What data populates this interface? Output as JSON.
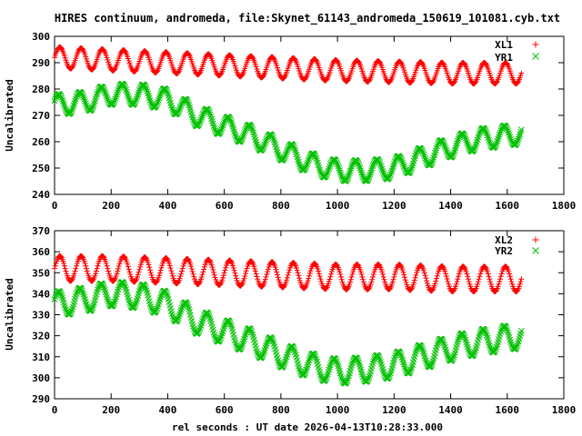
{
  "title": "HIRES continuum, andromeda, file:Skynet_61143_andromeda_150619_101081.cyb.txt",
  "xlabel": "rel seconds : UT date 2026-04-13T10:28:33.000",
  "chart_data": [
    {
      "type": "scatter",
      "ylabel": "Uncalibrated",
      "xlim": [
        0,
        1800
      ],
      "ylim": [
        240,
        300
      ],
      "xticks": [
        0,
        200,
        400,
        600,
        800,
        1000,
        1200,
        1400,
        1600,
        1800
      ],
      "yticks": [
        240,
        250,
        260,
        270,
        280,
        290,
        300
      ],
      "xtick_labels": [
        "0",
        "200",
        "400",
        "600",
        "800",
        "1000",
        "1200",
        "1400",
        "1600",
        "1800"
      ],
      "ytick_labels": [
        "240",
        "250",
        "260",
        "270",
        "280",
        "290",
        "300"
      ],
      "legend": "top-right",
      "oscillation_period_s": 75,
      "series": [
        {
          "name": "XL1",
          "marker": "+",
          "color": "#ff0000",
          "amplitude": 4,
          "baseline": {
            "x": [
              0,
              200,
              400,
              600,
              800,
              1000,
              1200,
              1400,
              1650
            ],
            "y": [
              292,
              291,
              290,
              289,
              288,
              287,
              286.5,
              286,
              286
            ]
          }
        },
        {
          "name": "YR1",
          "marker": "x",
          "color": "#00c000",
          "amplitude": 4,
          "baseline": {
            "x": [
              0,
              100,
              200,
              300,
              400,
              500,
              600,
              700,
              800,
              900,
              1000,
              1100,
              1200,
              1300,
              1400,
              1500,
              1650
            ],
            "y": [
              274,
              275,
              278,
              278,
              276,
              270,
              266,
              262,
              257,
              252,
              249,
              249,
              250,
              254,
              258,
              261,
              263
            ]
          }
        }
      ]
    },
    {
      "type": "scatter",
      "ylabel": "Uncalibrated",
      "xlim": [
        0,
        1800
      ],
      "ylim": [
        290,
        370
      ],
      "xticks": [
        0,
        200,
        400,
        600,
        800,
        1000,
        1200,
        1400,
        1600,
        1800
      ],
      "yticks": [
        290,
        300,
        310,
        320,
        330,
        340,
        350,
        360,
        370
      ],
      "xtick_labels": [
        "0",
        "200",
        "400",
        "600",
        "800",
        "1000",
        "1200",
        "1400",
        "1600",
        "1800"
      ],
      "ytick_labels": [
        "290",
        "300",
        "310",
        "320",
        "330",
        "340",
        "350",
        "360",
        "370"
      ],
      "legend": "top-right",
      "oscillation_period_s": 75,
      "series": [
        {
          "name": "XL2",
          "marker": "+",
          "color": "#ff0000",
          "amplitude": 6,
          "baseline": {
            "x": [
              0,
              200,
              400,
              600,
              800,
              1000,
              1200,
              1400,
              1650
            ],
            "y": [
              352,
              352,
              351,
              350,
              349,
              348,
              348,
              347,
              347
            ]
          }
        },
        {
          "name": "YR2",
          "marker": "x",
          "color": "#00c000",
          "amplitude": 6,
          "baseline": {
            "x": [
              0,
              100,
              200,
              300,
              400,
              500,
              600,
              700,
              800,
              900,
              1000,
              1100,
              1200,
              1300,
              1400,
              1500,
              1650
            ],
            "y": [
              335,
              337,
              340,
              339,
              335,
              327,
              322,
              317,
              311,
              306,
              303,
              304,
              306,
              310,
              314,
              317,
              320
            ]
          }
        }
      ]
    }
  ]
}
